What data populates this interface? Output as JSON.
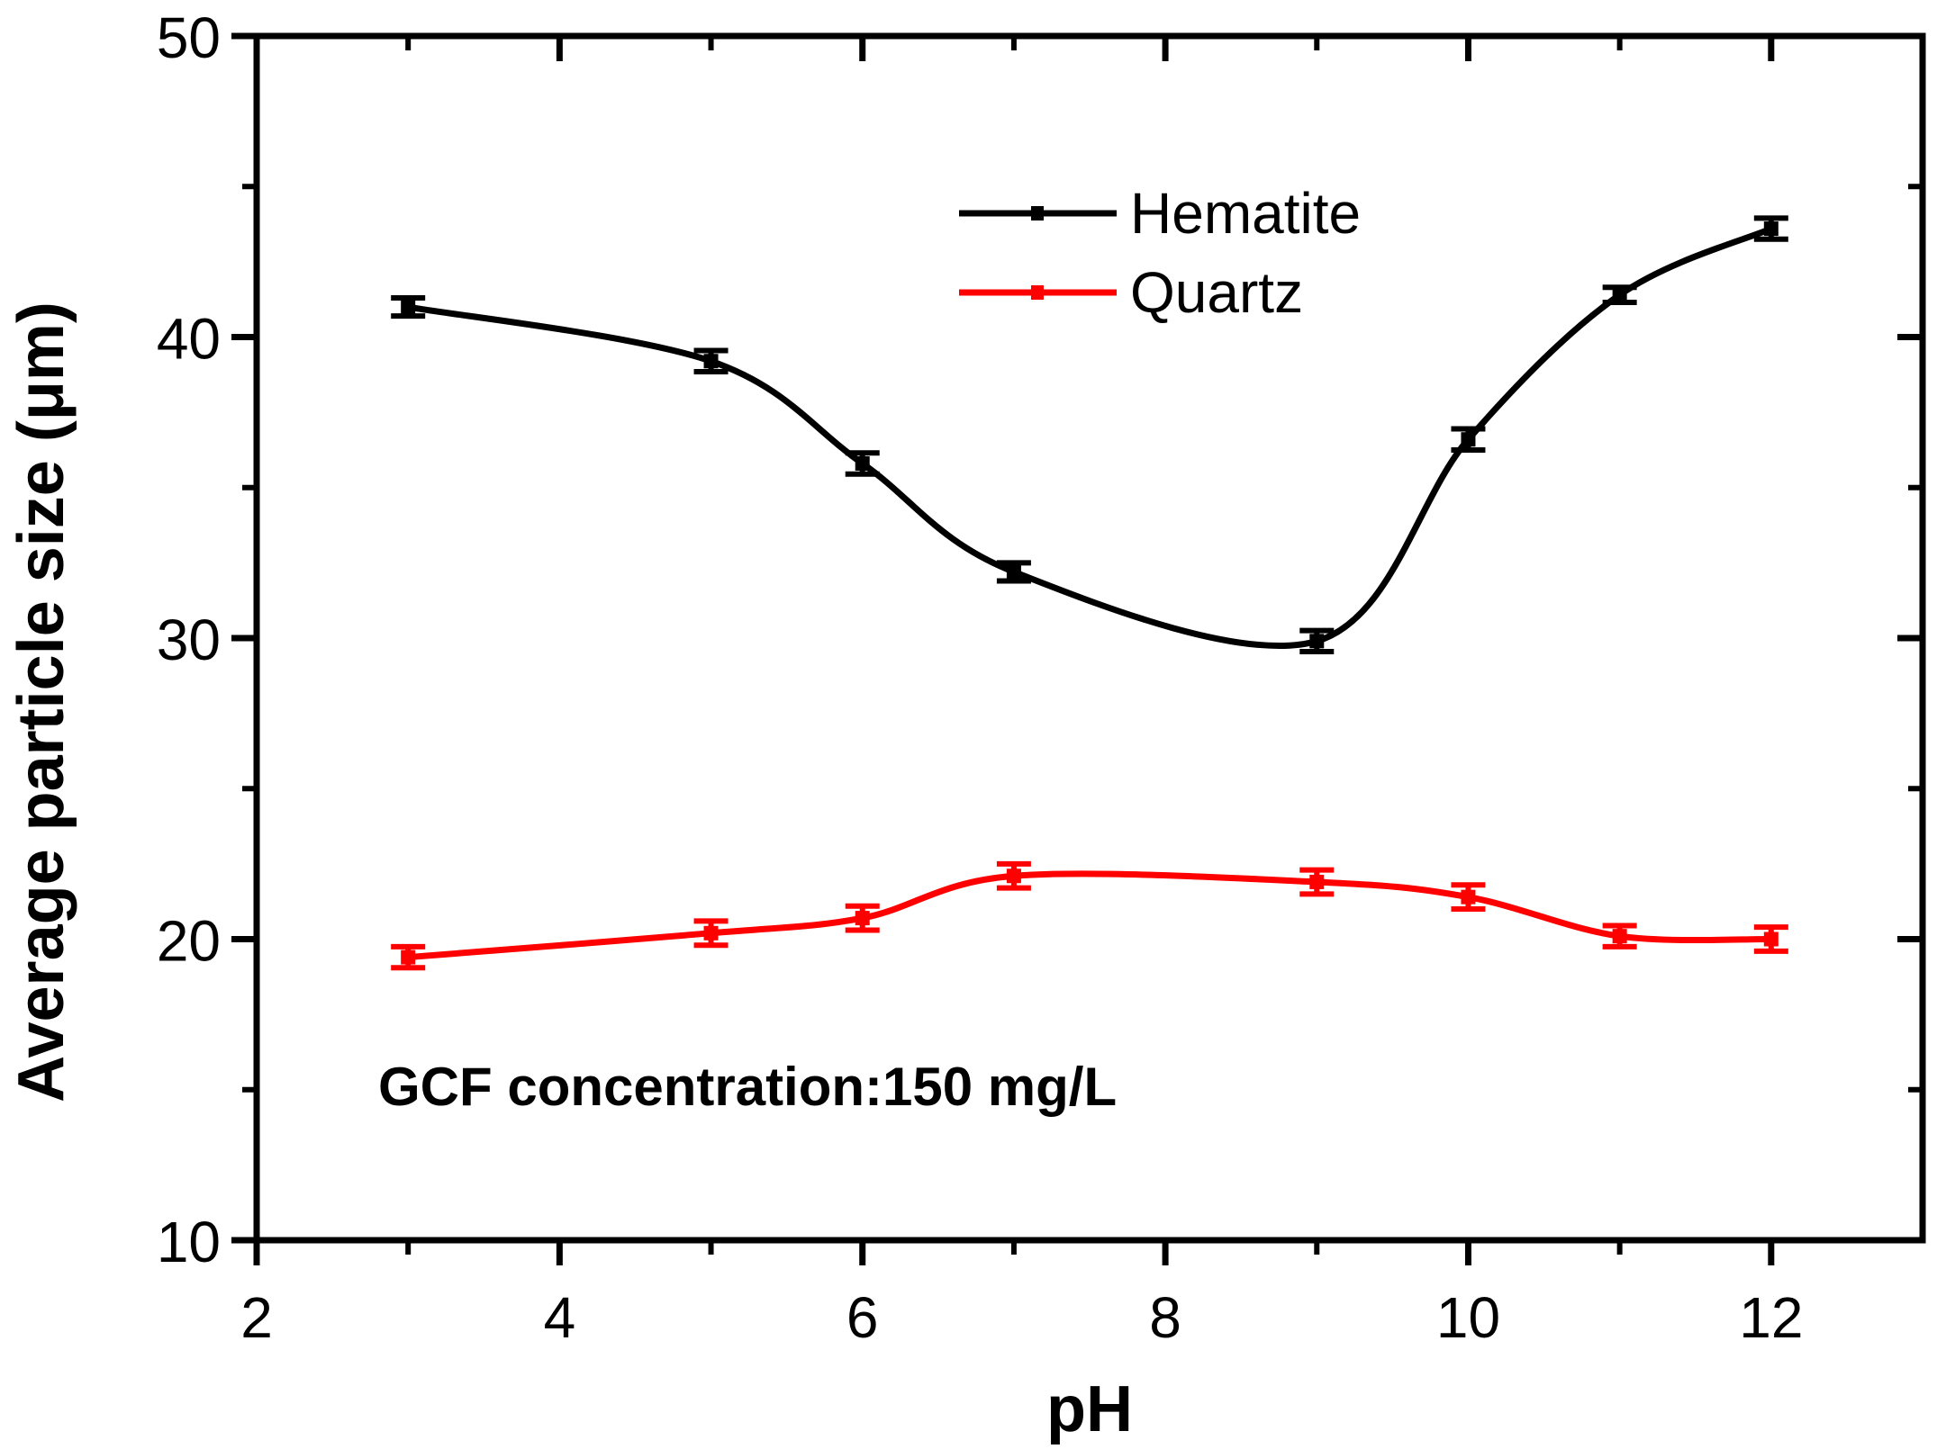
{
  "chart_data": {
    "type": "line",
    "xlabel": "pH",
    "ylabel": "Average particle size (μm)",
    "xlim": [
      2,
      13
    ],
    "ylim": [
      10,
      50
    ],
    "xticks": [
      2,
      4,
      6,
      8,
      10,
      12
    ],
    "yticks": [
      10,
      20,
      30,
      40,
      50
    ],
    "xtick_labels": [
      "2",
      "4",
      "6",
      "8",
      "10",
      "12"
    ],
    "ytick_labels": [
      "10",
      "20",
      "30",
      "40",
      "50"
    ],
    "grid": false,
    "legend_position": "top-center",
    "annotation": "GCF concentration:150 mg/L",
    "series": [
      {
        "name": "Hematite",
        "color": "#000000",
        "x": [
          3,
          5,
          6,
          7,
          9,
          10,
          11,
          12
        ],
        "y": [
          41.0,
          39.2,
          35.8,
          32.2,
          29.9,
          36.6,
          41.4,
          43.6
        ],
        "error": [
          0.3,
          0.35,
          0.35,
          0.3,
          0.35,
          0.35,
          0.25,
          0.35
        ]
      },
      {
        "name": "Quartz",
        "color": "#ff0000",
        "x": [
          3,
          5,
          6,
          7,
          9,
          10,
          11,
          12
        ],
        "y": [
          19.4,
          20.2,
          20.7,
          22.1,
          21.9,
          21.4,
          20.1,
          20.0
        ],
        "error": [
          0.35,
          0.4,
          0.4,
          0.4,
          0.4,
          0.4,
          0.35,
          0.4
        ]
      }
    ]
  }
}
